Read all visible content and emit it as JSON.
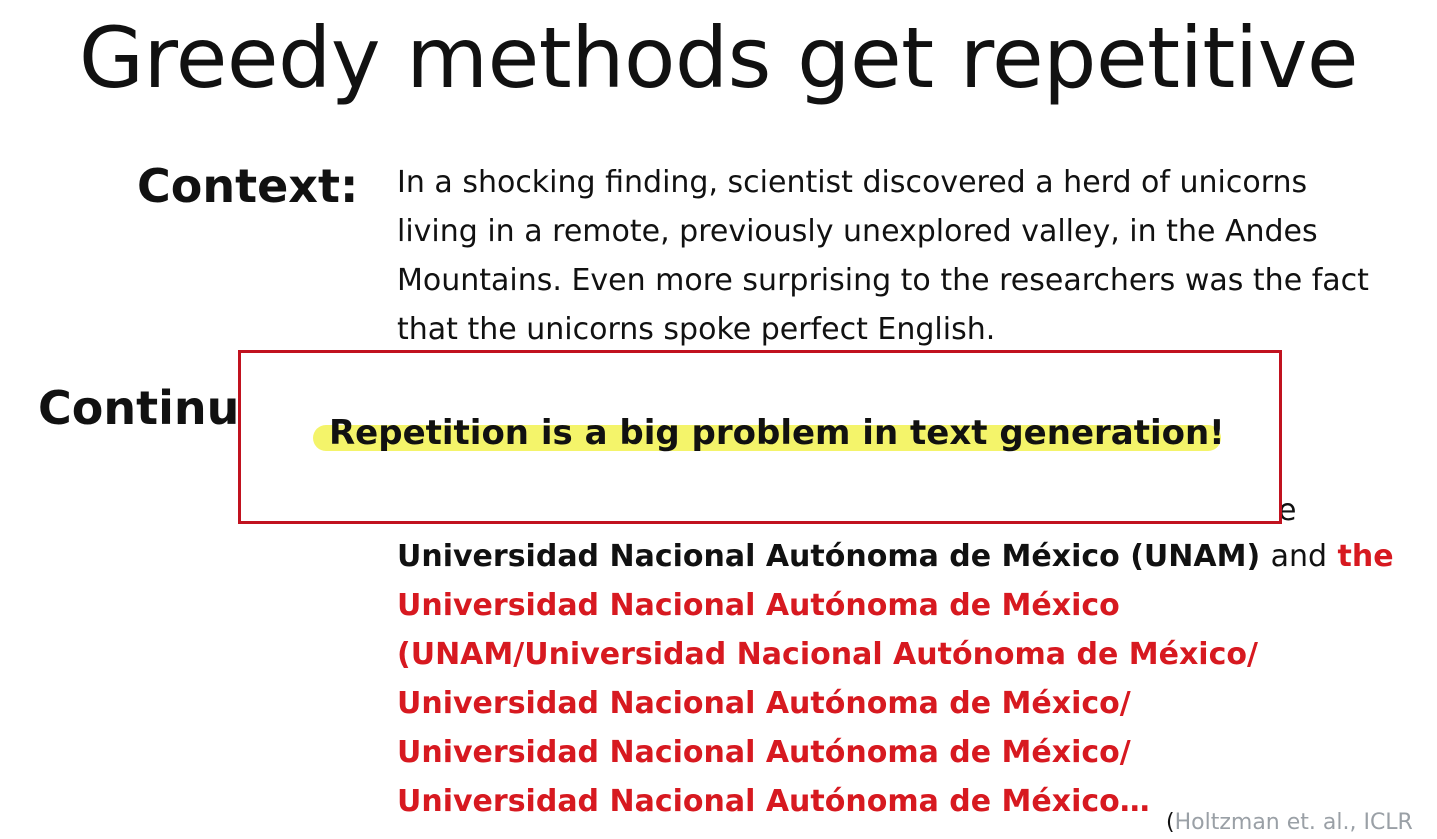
{
  "title": "Greedy methods get repetitive",
  "labels": {
    "context": "Context:",
    "continuation": "Continua"
  },
  "context_lines": [
    "In a shocking finding, scientist discovered a herd of unicorns",
    "living in a remote, previously unexplored valley, in the Andes",
    "Mountains. Even more surprising to the researchers was the fact",
    "that the unicorns spoke perfect English."
  ],
  "callout": {
    "text": "Repetition is a big problem in text generation!"
  },
  "continuation": {
    "peek_char": "e",
    "line1_bold": "Universidad Nacional Autónoma de México (UNAM)",
    "line1_and": "and",
    "line1_red": "the",
    "red_lines": [
      "Universidad Nacional Autónoma de México",
      "(UNAM/Universidad Nacional Autónoma de México/",
      "Universidad Nacional Autónoma de México/",
      "Universidad Nacional Autónoma de México/",
      "Universidad Nacional Autónoma de México…"
    ]
  },
  "citation": {
    "paren": "(",
    "text": "Holtzman et. al., ICLR"
  },
  "colors": {
    "red": "#d71920",
    "highlight": "#f4f46a",
    "citation": "#9aa0a6"
  }
}
